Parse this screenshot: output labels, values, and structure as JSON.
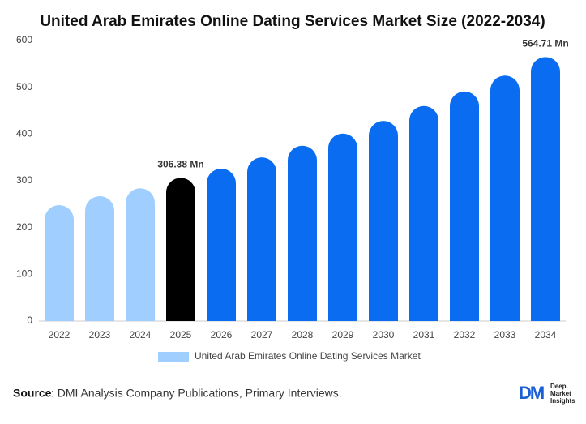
{
  "chart_data": {
    "type": "bar",
    "title": "United Arab Emirates Online Dating Services Market Size (2022-2034)",
    "categories": [
      "2022",
      "2023",
      "2024",
      "2025",
      "2026",
      "2027",
      "2028",
      "2029",
      "2030",
      "2031",
      "2032",
      "2033",
      "2034"
    ],
    "series": [
      {
        "name": "United Arab Emirates Online Dating Services Market",
        "color": "#a0cfff",
        "values": [
          248,
          267,
          284,
          306.38,
          326,
          350,
          375,
          401,
          428,
          460,
          491,
          525,
          564.71
        ],
        "colors": [
          "#a0cfff",
          "#a0cfff",
          "#a0cfff",
          "#000000",
          "#0a6cf0",
          "#0a6cf0",
          "#0a6cf0",
          "#0a6cf0",
          "#0a6cf0",
          "#0a6cf0",
          "#0a6cf0",
          "#0a6cf0",
          "#0a6cf0"
        ],
        "value_labels": [
          null,
          null,
          null,
          "306.38 Mn",
          null,
          null,
          null,
          null,
          null,
          null,
          null,
          null,
          "564.71 Mn"
        ]
      }
    ],
    "ylim": [
      0,
      600
    ],
    "yticks": [
      0,
      100,
      200,
      300,
      400,
      500,
      600
    ],
    "grid": false
  },
  "source": {
    "label": "Source",
    "text": ": DMI Analysis Company Publications, Primary Interviews."
  },
  "logo": {
    "mark": "DM",
    "lines": [
      "Deep",
      "Market",
      "Insights"
    ]
  }
}
